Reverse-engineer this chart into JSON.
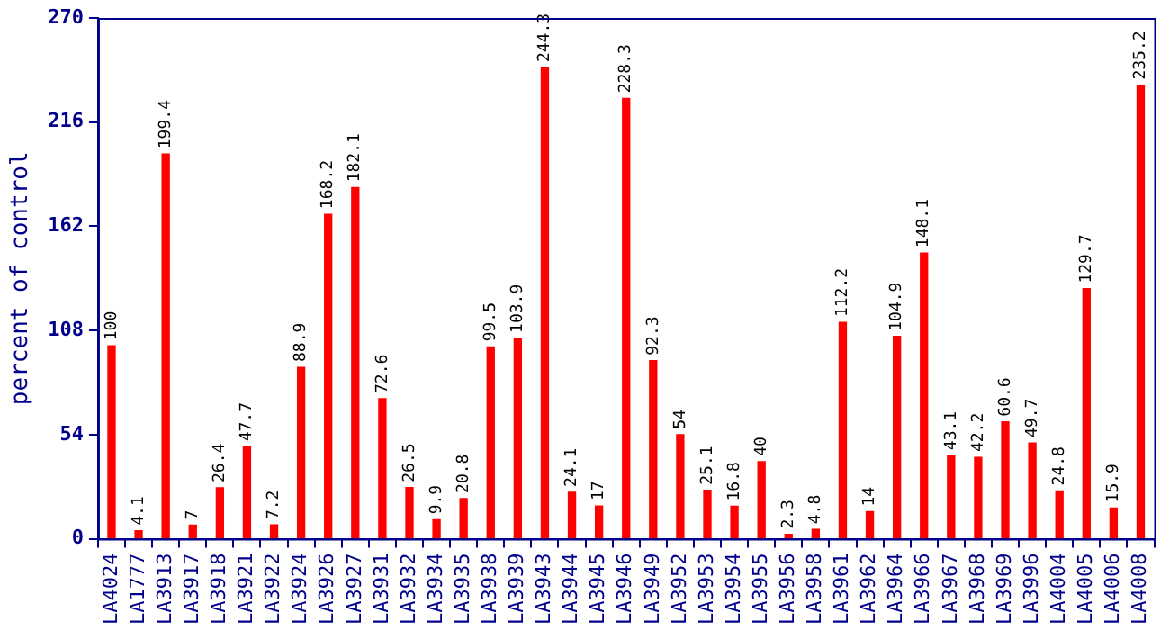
{
  "chart_data": {
    "type": "bar",
    "ylabel": "percent of control",
    "categories": [
      "LA4024",
      "LA1777",
      "LA3913",
      "LA3917",
      "LA3918",
      "LA3921",
      "LA3922",
      "LA3924",
      "LA3926",
      "LA3927",
      "LA3931",
      "LA3932",
      "LA3934",
      "LA3935",
      "LA3938",
      "LA3939",
      "LA3943",
      "LA3944",
      "LA3945",
      "LA3946",
      "LA3949",
      "LA3952",
      "LA3953",
      "LA3954",
      "LA3955",
      "LA3956",
      "LA3958",
      "LA3961",
      "LA3962",
      "LA3964",
      "LA3966",
      "LA3967",
      "LA3968",
      "LA3969",
      "LA3996",
      "LA4004",
      "LA4005",
      "LA4006",
      "LA4008"
    ],
    "values": [
      100,
      4.1,
      199.4,
      7,
      26.4,
      47.7,
      7.2,
      88.9,
      168.2,
      182.1,
      72.6,
      26.5,
      9.9,
      20.8,
      99.5,
      103.9,
      244.3,
      24.1,
      17,
      228.3,
      92.3,
      54,
      25.1,
      16.8,
      40,
      2.3,
      4.8,
      112.2,
      14,
      104.9,
      148.1,
      43.1,
      42.2,
      60.6,
      49.7,
      24.8,
      129.7,
      15.9,
      235.2
    ],
    "color": "#ff0000",
    "ylim": [
      0,
      270
    ],
    "yticks": [
      0,
      54,
      108,
      162,
      216,
      270
    ],
    "grid": false,
    "legend": false,
    "data_labels": true
  }
}
